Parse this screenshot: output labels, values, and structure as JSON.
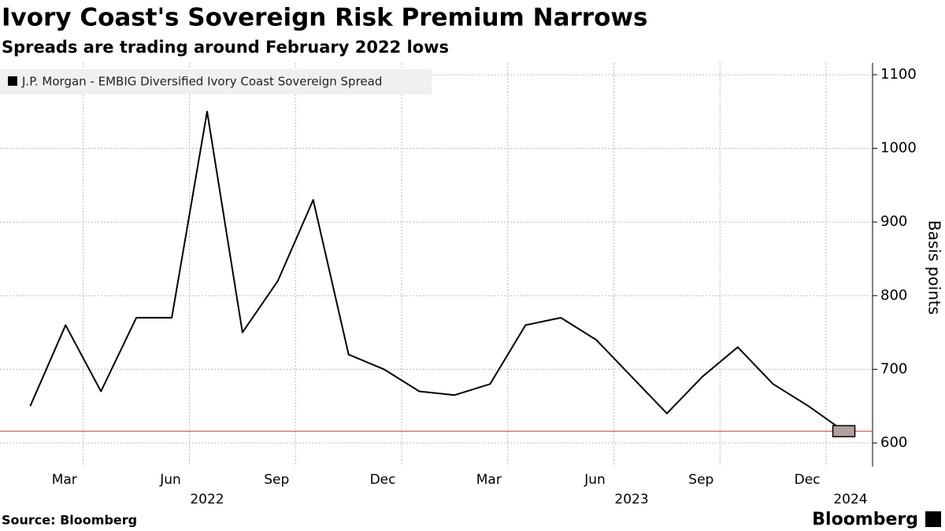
{
  "chart_data": {
    "type": "line",
    "title": "Ivory Coast's Sovereign Risk Premium Narrows",
    "subtitle": "Spreads are trading around February 2022 lows",
    "y_label": "Basis points",
    "source": "Source: Bloomberg",
    "brand": "Bloomberg",
    "x": [
      "2022-01",
      "2022-02",
      "2022-03",
      "2022-04",
      "2022-05",
      "2022-06",
      "2022-07",
      "2022-08",
      "2022-09",
      "2022-10",
      "2022-11",
      "2022-12",
      "2023-01",
      "2023-02",
      "2023-03",
      "2023-04",
      "2023-05",
      "2023-06",
      "2023-07",
      "2023-08",
      "2023-09",
      "2023-10",
      "2023-11",
      "2023-12"
    ],
    "series": [
      {
        "name": "J.P. Morgan - EMBIG Diversified Ivory Coast Sovereign Spread",
        "color": "#000000",
        "values": [
          650,
          760,
          670,
          770,
          770,
          1050,
          750,
          820,
          930,
          720,
          700,
          670,
          665,
          680,
          760,
          770,
          740,
          690,
          640,
          690,
          730,
          680,
          650,
          616
        ]
      }
    ],
    "reference_line": {
      "value": 616,
      "color": "#c0392b"
    },
    "xlim": [
      "2021-12",
      "2024-01"
    ],
    "xticks": [
      {
        "value": "2022-03",
        "label": "Mar"
      },
      {
        "value": "2022-06",
        "label": "Jun"
      },
      {
        "value": "2022-09",
        "label": "Sep"
      },
      {
        "value": "2022-12",
        "label": "Dec"
      },
      {
        "value": "2023-03",
        "label": "Mar"
      },
      {
        "value": "2023-06",
        "label": "Jun"
      },
      {
        "value": "2023-09",
        "label": "Sep"
      },
      {
        "value": "2023-12",
        "label": "Dec"
      }
    ],
    "year_labels": [
      "2022",
      "2023",
      "2024"
    ],
    "ylim": [
      568,
      1116
    ],
    "yticks": [
      600,
      700,
      800,
      900,
      1000,
      1100
    ],
    "grid": true
  }
}
